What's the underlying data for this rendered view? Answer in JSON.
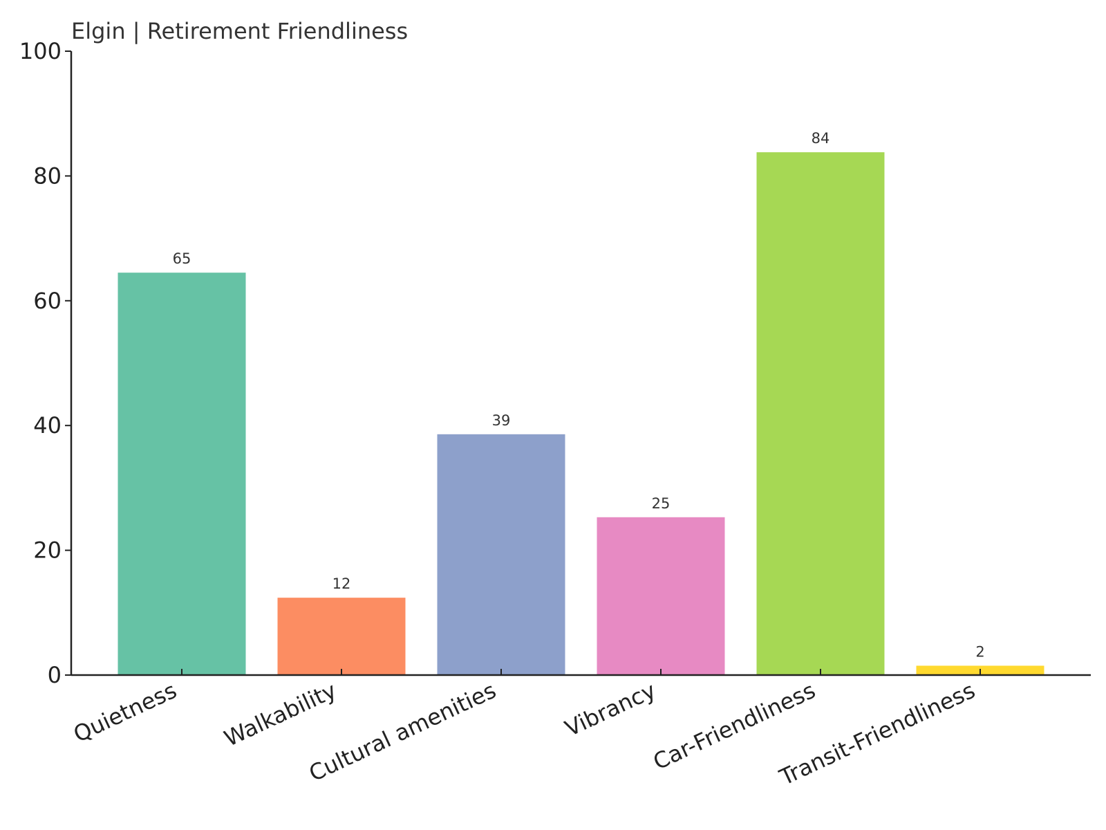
{
  "chart_data": {
    "type": "bar",
    "title": "Elgin | Retirement Friendliness",
    "xlabel": "",
    "ylabel": "",
    "categories": [
      "Quietness",
      "Walkability",
      "Cultural amenities",
      "Vibrancy",
      "Car-Friendliness",
      "Transit-Friendliness"
    ],
    "values": [
      64.5,
      12.4,
      38.6,
      25.3,
      83.8,
      1.5
    ],
    "data_labels": [
      "65",
      "12",
      "39",
      "25",
      "84",
      "2"
    ],
    "colors": [
      "#66c2a5",
      "#fc8d62",
      "#8da0cb",
      "#e78ac3",
      "#a6d854",
      "#ffd92f"
    ],
    "ylim": [
      0,
      100
    ],
    "yticks": [
      0,
      20,
      40,
      60,
      80,
      100
    ],
    "ytick_labels": [
      "0",
      "20",
      "40",
      "60",
      "80",
      "100"
    ],
    "grid": false,
    "legend": "none"
  }
}
